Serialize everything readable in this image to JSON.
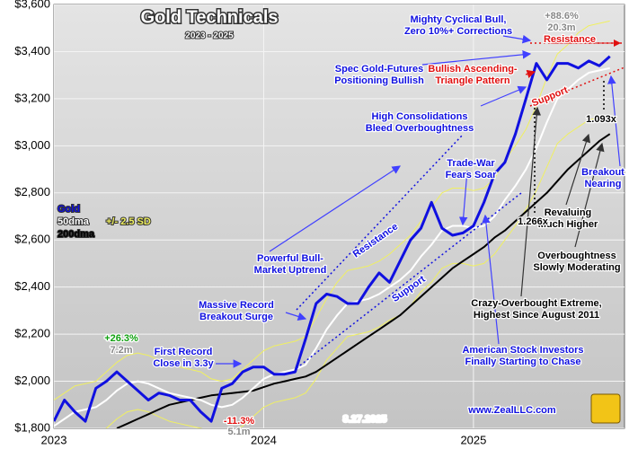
{
  "chart_data": {
    "type": "line",
    "title": "Gold Technicals",
    "subtitle": "2023 - 2025",
    "x": [
      2023.0,
      2023.05,
      2023.1,
      2023.15,
      2023.2,
      2023.25,
      2023.3,
      2023.35,
      2023.4,
      2023.45,
      2023.5,
      2023.55,
      2023.6,
      2023.65,
      2023.7,
      2023.75,
      2023.8,
      2023.85,
      2023.9,
      2023.95,
      2024.0,
      2024.05,
      2024.1,
      2024.15,
      2024.2,
      2024.25,
      2024.3,
      2024.35,
      2024.4,
      2024.45,
      2024.5,
      2024.55,
      2024.6,
      2024.65,
      2024.7,
      2024.75,
      2024.8,
      2024.85,
      2024.9,
      2024.95,
      2025.0,
      2025.05,
      2025.1,
      2025.15,
      2025.2,
      2025.25,
      2025.3,
      2025.35,
      2025.4,
      2025.45,
      2025.5,
      2025.55,
      2025.6,
      2025.65
    ],
    "series": [
      {
        "name": "Gold",
        "color": "#1010e0",
        "width": 3,
        "values": [
          1830,
          1920,
          1870,
          1830,
          1970,
          2000,
          2040,
          2000,
          1960,
          1920,
          1950,
          1940,
          1920,
          1920,
          1870,
          1830,
          1970,
          1990,
          2040,
          2060,
          2060,
          2030,
          2030,
          2040,
          2180,
          2330,
          2370,
          2360,
          2330,
          2330,
          2400,
          2460,
          2420,
          2510,
          2600,
          2650,
          2760,
          2650,
          2620,
          2630,
          2660,
          2760,
          2880,
          2930,
          3050,
          3200,
          3350,
          3280,
          3350,
          3350,
          3330,
          3360,
          3340,
          3380
        ]
      },
      {
        "name": "50dma",
        "color": "#ffffff",
        "width": 2,
        "values": [
          1810,
          1840,
          1870,
          1880,
          1890,
          1920,
          1960,
          1990,
          2000,
          1990,
          1970,
          1950,
          1940,
          1930,
          1920,
          1900,
          1890,
          1900,
          1930,
          1970,
          2010,
          2030,
          2040,
          2050,
          2070,
          2140,
          2220,
          2280,
          2330,
          2340,
          2350,
          2370,
          2400,
          2430,
          2470,
          2530,
          2580,
          2640,
          2660,
          2660,
          2650,
          2660,
          2700,
          2770,
          2830,
          2900,
          2990,
          3100,
          3200,
          3240,
          3280,
          3310,
          3320,
          3330
        ]
      },
      {
        "name": "+/- 2.5 SD",
        "color": "#f0f060",
        "width": 1,
        "values": [
          1920,
          1950,
          1980,
          1990,
          2000,
          2040,
          2080,
          2110,
          2120,
          2110,
          2090,
          2070,
          2060,
          2050,
          2040,
          2010,
          2000,
          2010,
          2050,
          2090,
          2130,
          2150,
          2160,
          2170,
          2190,
          2270,
          2350,
          2420,
          2470,
          2480,
          2490,
          2510,
          2540,
          2580,
          2620,
          2680,
          2740,
          2800,
          2820,
          2820,
          2810,
          2820,
          2860,
          2940,
          3000,
          3070,
          3170,
          3290,
          3390,
          3430,
          3480,
          3510,
          3520,
          3530
        ],
        "lower": [
          1700,
          1730,
          1760,
          1770,
          1780,
          1800,
          1840,
          1870,
          1880,
          1870,
          1850,
          1830,
          1820,
          1810,
          1800,
          1790,
          1780,
          1790,
          1810,
          1850,
          1890,
          1910,
          1920,
          1930,
          1950,
          2010,
          2090,
          2140,
          2190,
          2200,
          2210,
          2230,
          2260,
          2280,
          2320,
          2380,
          2420,
          2480,
          2500,
          2500,
          2490,
          2500,
          2540,
          2600,
          2660,
          2730,
          2810,
          2910,
          3010,
          3050,
          3080,
          3110,
          3120,
          3130
        ]
      },
      {
        "name": "200dma",
        "color": "#000000",
        "width": 2,
        "values": [
          null,
          null,
          null,
          null,
          null,
          null,
          1800,
          1820,
          1840,
          1860,
          1880,
          1900,
          1910,
          1920,
          1930,
          1940,
          1945,
          1950,
          1955,
          1960,
          1975,
          1990,
          2000,
          2010,
          2020,
          2040,
          2070,
          2100,
          2130,
          2160,
          2190,
          2220,
          2250,
          2280,
          2320,
          2360,
          2400,
          2440,
          2480,
          2510,
          2540,
          2570,
          2610,
          2640,
          2680,
          2720,
          2760,
          2800,
          2850,
          2900,
          2940,
          2980,
          3020,
          3050
        ]
      }
    ],
    "xlim": [
      2023,
      2025.72
    ],
    "xticks": [
      2023,
      2024,
      2025
    ],
    "ylim": [
      1800,
      3600
    ],
    "yticks": [
      {
        "value": 1800,
        "label": "$1,800"
      },
      {
        "value": 2000,
        "label": "$2,000"
      },
      {
        "value": 2200,
        "label": "$2,200"
      },
      {
        "value": 2400,
        "label": "$2,400"
      },
      {
        "value": 2600,
        "label": "$2,600"
      },
      {
        "value": 2800,
        "label": "$2,800"
      },
      {
        "value": 3000,
        "label": "$3,000"
      },
      {
        "value": 3200,
        "label": "$3,200"
      },
      {
        "value": 3400,
        "label": "$3,400"
      },
      {
        "value": 3600,
        "label": "$3,600"
      }
    ],
    "grid": true,
    "annotations": [
      {
        "lines": [
          "Mighty Cyclical Bull,",
          "Zero 10%+ Corrections"
        ],
        "color": "#1010e0"
      },
      {
        "lines": [
          "+88.6%",
          "20.3m"
        ],
        "color": "#888888"
      },
      {
        "lines": [
          "Resistance"
        ],
        "color": "#e01010"
      },
      {
        "lines": [
          "Spec Gold-Futures",
          "Positioning Bullish"
        ],
        "color": "#1010e0"
      },
      {
        "lines": [
          "Bullish Ascending-",
          "Triangle Pattern"
        ],
        "color": "#e01010"
      },
      {
        "lines": [
          "Support"
        ],
        "color": "#e01010"
      },
      {
        "lines": [
          "High Consolidations",
          "Bleed Overboughtness"
        ],
        "color": "#1010e0"
      },
      {
        "lines": [
          "1.093x"
        ],
        "color": "#000000"
      },
      {
        "lines": [
          "Trade-War",
          "Fears Soar"
        ],
        "color": "#1010e0"
      },
      {
        "lines": [
          "Breakout",
          "Nearing"
        ],
        "color": "#1010e0"
      },
      {
        "lines": [
          "Revaluing",
          "Much Higher"
        ],
        "color": "#000000"
      },
      {
        "lines": [
          "1.266x"
        ],
        "color": "#000000"
      },
      {
        "lines": [
          "Resistance"
        ],
        "color": "#1010e0"
      },
      {
        "lines": [
          "Overboughtness",
          "Slowly Moderating"
        ],
        "color": "#000000"
      },
      {
        "lines": [
          "Powerful Bull-",
          "Market Uptrend"
        ],
        "color": "#1010e0"
      },
      {
        "lines": [
          "Support"
        ],
        "color": "#1010e0"
      },
      {
        "lines": [
          "Massive Record",
          "Breakout Surge"
        ],
        "color": "#1010e0"
      },
      {
        "lines": [
          "Crazy-Overbought Extreme,",
          "Highest Since August 2011"
        ],
        "color": "#000000"
      },
      {
        "lines": [
          "+26.3%"
        ],
        "color": "#10a010"
      },
      {
        "lines": [
          "7.2m"
        ],
        "color": "#888888"
      },
      {
        "lines": [
          "First Record",
          "Close in 3.3y"
        ],
        "color": "#1010e0"
      },
      {
        "lines": [
          "American Stock Investors",
          "Finally Starting to Chase"
        ],
        "color": "#1010e0"
      },
      {
        "lines": [
          "-11.3%"
        ],
        "color": "#e01010"
      },
      {
        "lines": [
          "5.1m"
        ],
        "color": "#888888"
      },
      {
        "lines": [
          "8.27.2025"
        ],
        "color": "#ffffff"
      },
      {
        "lines": [
          "www.ZealLLC.com"
        ],
        "color": "#1010e0"
      }
    ]
  }
}
